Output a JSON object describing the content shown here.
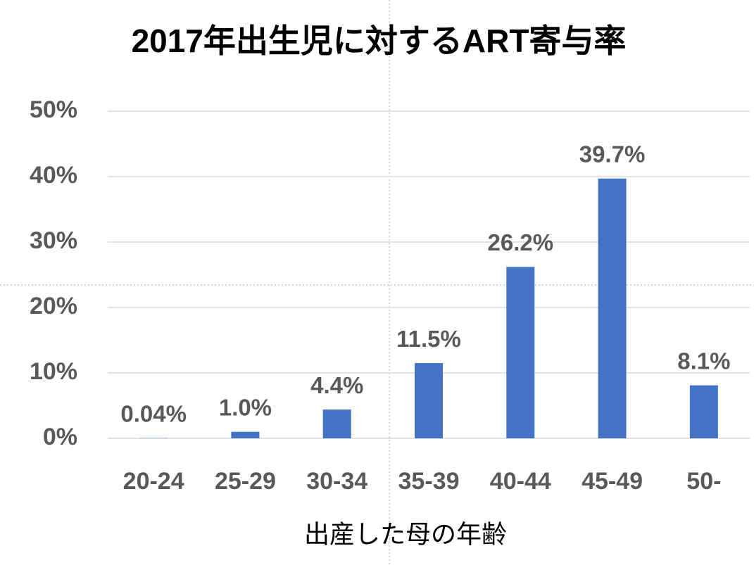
{
  "chart_data": {
    "type": "bar",
    "title": "2017年出生児に対するART寄与率",
    "x_label": "出産した母の年齢",
    "categories": [
      "20-24",
      "25-29",
      "30-34",
      "35-39",
      "40-44",
      "45-49",
      "50-"
    ],
    "values": [
      0.04,
      1.0,
      4.4,
      11.5,
      26.2,
      39.7,
      8.1
    ],
    "value_labels": [
      "0.04%",
      "1.0%",
      "4.4%",
      "11.5%",
      "26.2%",
      "39.7%",
      "8.1%"
    ],
    "color": "#4472c4",
    "ylim": [
      0,
      50
    ],
    "yticks": [
      {
        "value": 0,
        "label": "0%"
      },
      {
        "value": 10,
        "label": "10%"
      },
      {
        "value": 20,
        "label": "20%"
      },
      {
        "value": 30,
        "label": "30%"
      },
      {
        "value": 40,
        "label": "40%"
      },
      {
        "value": 50,
        "label": "50%"
      }
    ],
    "grid": true
  }
}
